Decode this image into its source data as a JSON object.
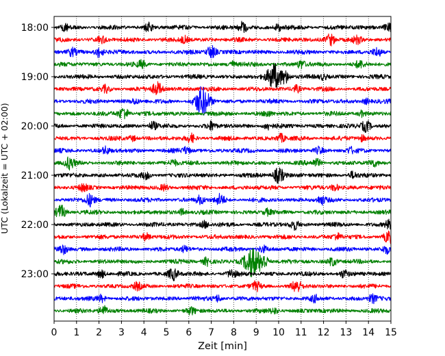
{
  "chart_data": {
    "type": "line",
    "subtype": "helicorder",
    "title": "",
    "xlabel": "Zeit  [min]",
    "ylabel": "UTC (Lokalzeit = UTC + 02:00)",
    "xlim": [
      0,
      15
    ],
    "x_ticks": [
      0,
      1,
      2,
      3,
      4,
      5,
      6,
      7,
      8,
      9,
      10,
      11,
      12,
      13,
      14,
      15
    ],
    "x_tick_labels": [
      "0",
      "1",
      "2",
      "3",
      "4",
      "5",
      "6",
      "7",
      "8",
      "9",
      "10",
      "11",
      "12",
      "13",
      "14",
      "15"
    ],
    "y_tick_labels": [
      "18:00",
      "19:00",
      "20:00",
      "21:00",
      "22:00",
      "23:00"
    ],
    "y_tick_rows": [
      0,
      4,
      8,
      12,
      16,
      20
    ],
    "trace_minutes": 15,
    "grid": "vertical dotted",
    "colors": [
      "#000000",
      "#ff0000",
      "#0000ff",
      "#008000"
    ],
    "traces": [
      {
        "start": "18:00",
        "color_index": 0,
        "bursts": [
          [
            0.5,
            0.5
          ],
          [
            4.2,
            0.6
          ],
          [
            8.4,
            0.8
          ],
          [
            10.0,
            0.5
          ],
          [
            14.9,
            0.8
          ]
        ]
      },
      {
        "start": "18:15",
        "color_index": 1,
        "bursts": [
          [
            2.1,
            0.5
          ],
          [
            5.8,
            0.5
          ],
          [
            12.3,
            0.9
          ],
          [
            13.5,
            0.5
          ]
        ]
      },
      {
        "start": "18:30",
        "color_index": 2,
        "bursts": [
          [
            0.8,
            0.5
          ],
          [
            2.0,
            0.8
          ],
          [
            7.0,
            1.0
          ],
          [
            14.4,
            0.6
          ]
        ]
      },
      {
        "start": "18:45",
        "color_index": 3,
        "bursts": [
          [
            3.9,
            0.5
          ],
          [
            7.9,
            0.5
          ],
          [
            11.0,
            0.6
          ],
          [
            13.6,
            0.5
          ]
        ]
      },
      {
        "start": "19:00",
        "color_index": 0,
        "bursts": [
          [
            9.8,
            2.0
          ],
          [
            10.3,
            0.9
          ],
          [
            12.0,
            0.4
          ]
        ]
      },
      {
        "start": "19:15",
        "color_index": 1,
        "bursts": [
          [
            2.3,
            0.5
          ],
          [
            4.6,
            1.0
          ],
          [
            10.8,
            0.5
          ]
        ]
      },
      {
        "start": "19:30",
        "color_index": 2,
        "bursts": [
          [
            3.6,
            0.4
          ],
          [
            6.6,
            2.2
          ],
          [
            13.9,
            0.4
          ]
        ]
      },
      {
        "start": "19:45",
        "color_index": 3,
        "bursts": [
          [
            3.1,
            1.0
          ],
          [
            9.5,
            0.4
          ],
          [
            13.7,
            0.4
          ]
        ]
      },
      {
        "start": "20:00",
        "color_index": 0,
        "bursts": [
          [
            4.4,
            0.6
          ],
          [
            7.0,
            0.6
          ],
          [
            9.5,
            0.5
          ],
          [
            13.9,
            0.9
          ]
        ]
      },
      {
        "start": "20:15",
        "color_index": 1,
        "bursts": [
          [
            3.5,
            0.4
          ],
          [
            6.1,
            0.6
          ],
          [
            10.1,
            0.6
          ],
          [
            13.7,
            0.4
          ]
        ]
      },
      {
        "start": "20:30",
        "color_index": 2,
        "bursts": [
          [
            2.3,
            0.5
          ],
          [
            5.9,
            0.5
          ],
          [
            11.8,
            0.5
          ],
          [
            13.2,
            0.4
          ]
        ]
      },
      {
        "start": "20:45",
        "color_index": 3,
        "bursts": [
          [
            0.7,
            0.9
          ],
          [
            5.3,
            0.5
          ],
          [
            11.7,
            0.6
          ],
          [
            14.2,
            0.5
          ]
        ]
      },
      {
        "start": "21:00",
        "color_index": 0,
        "bursts": [
          [
            4.1,
            0.5
          ],
          [
            10.0,
            1.2
          ],
          [
            13.3,
            0.5
          ]
        ]
      },
      {
        "start": "21:15",
        "color_index": 1,
        "bursts": [
          [
            1.3,
            0.5
          ],
          [
            4.9,
            0.4
          ],
          [
            12.5,
            0.5
          ]
        ]
      },
      {
        "start": "21:30",
        "color_index": 2,
        "bursts": [
          [
            1.6,
            0.9
          ],
          [
            6.5,
            0.6
          ],
          [
            7.4,
            0.8
          ],
          [
            11.9,
            0.6
          ]
        ]
      },
      {
        "start": "21:45",
        "color_index": 3,
        "bursts": [
          [
            0.3,
            1.0
          ],
          [
            5.7,
            0.5
          ],
          [
            9.5,
            0.4
          ]
        ]
      },
      {
        "start": "22:00",
        "color_index": 0,
        "bursts": [
          [
            6.7,
            0.5
          ],
          [
            10.7,
            0.7
          ],
          [
            14.9,
            0.6
          ]
        ]
      },
      {
        "start": "22:15",
        "color_index": 1,
        "bursts": [
          [
            4.1,
            0.5
          ],
          [
            12.6,
            0.5
          ],
          [
            14.9,
            0.9
          ]
        ]
      },
      {
        "start": "22:30",
        "color_index": 2,
        "bursts": [
          [
            0.4,
            0.7
          ],
          [
            5.8,
            0.4
          ],
          [
            9.3,
            0.5
          ],
          [
            14.8,
            0.6
          ]
        ]
      },
      {
        "start": "22:45",
        "color_index": 3,
        "bursts": [
          [
            6.8,
            0.6
          ],
          [
            8.8,
            2.2
          ],
          [
            9.3,
            1.2
          ],
          [
            12.4,
            0.6
          ]
        ]
      },
      {
        "start": "23:00",
        "color_index": 0,
        "bursts": [
          [
            2.1,
            0.6
          ],
          [
            5.3,
            0.9
          ],
          [
            7.9,
            0.6
          ],
          [
            12.9,
            0.5
          ]
        ]
      },
      {
        "start": "23:15",
        "color_index": 1,
        "bursts": [
          [
            3.7,
            0.5
          ],
          [
            9.0,
            0.6
          ],
          [
            10.8,
            0.9
          ]
        ]
      },
      {
        "start": "23:30",
        "color_index": 2,
        "bursts": [
          [
            2.1,
            0.5
          ],
          [
            7.3,
            0.5
          ],
          [
            11.6,
            0.4
          ],
          [
            14.2,
            0.6
          ]
        ]
      },
      {
        "start": "23:45",
        "color_index": 3,
        "bursts": [
          [
            2.2,
            0.7
          ],
          [
            6.1,
            0.5
          ],
          [
            9.8,
            0.4
          ]
        ]
      }
    ]
  }
}
